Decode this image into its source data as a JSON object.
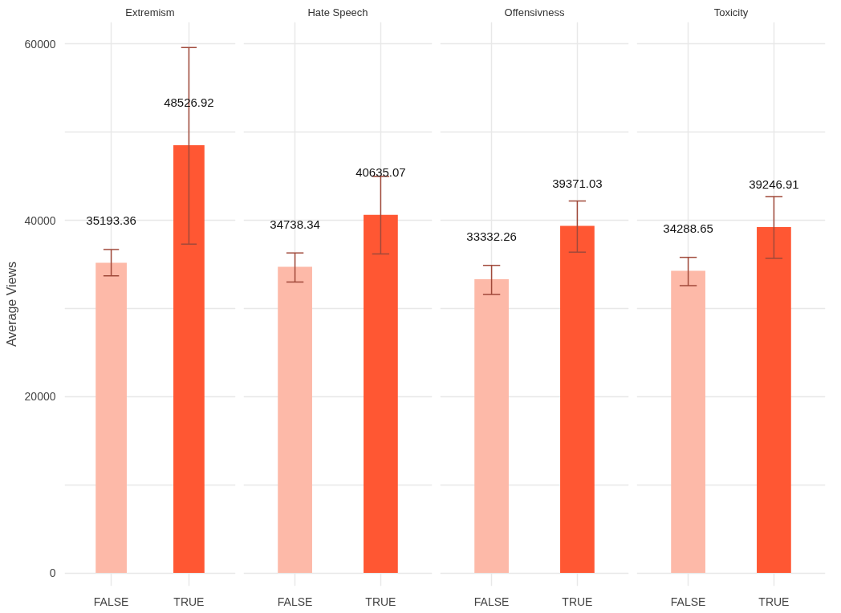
{
  "chart_data": [
    {
      "type": "bar",
      "title": "Extremism",
      "ylabel": "Average Views",
      "categories": [
        "FALSE",
        "TRUE"
      ],
      "values": [
        35193.36,
        48526.92
      ],
      "colors": [
        "#fdb9a8",
        "#ff5733"
      ],
      "errors": [
        [
          33700,
          36700
        ],
        [
          37300,
          59600
        ]
      ],
      "data_labels": true,
      "ylim": [
        -1500,
        62500
      ],
      "yticks": [
        0,
        {
          "value": 10000,
          "label": null
        },
        20000,
        {
          "value": 30000,
          "label": null
        },
        40000,
        {
          "value": 50000,
          "label": null
        },
        60000
      ],
      "grid": true
    },
    {
      "type": "bar",
      "title": "Hate Speech",
      "categories": [
        "FALSE",
        "TRUE"
      ],
      "values": [
        34738.34,
        40635.07
      ],
      "colors": [
        "#fdb9a8",
        "#ff5733"
      ],
      "errors": [
        [
          33000,
          36300
        ],
        [
          36200,
          45000
        ]
      ],
      "data_labels": true,
      "ylim": [
        -1500,
        62500
      ],
      "yticks": [
        0,
        {
          "value": 10000,
          "label": null
        },
        20000,
        {
          "value": 30000,
          "label": null
        },
        40000,
        {
          "value": 50000,
          "label": null
        },
        60000
      ],
      "grid": true,
      "tick_labels": "x"
    },
    {
      "type": "bar",
      "title": "Offensivness",
      "categories": [
        "FALSE",
        "TRUE"
      ],
      "values": [
        33332.26,
        39371.03
      ],
      "colors": [
        "#fdb9a8",
        "#ff5733"
      ],
      "errors": [
        [
          31600,
          34900
        ],
        [
          36400,
          42200
        ]
      ],
      "data_labels": true,
      "ylim": [
        -1500,
        62500
      ],
      "yticks": [
        0,
        {
          "value": 10000,
          "label": null
        },
        20000,
        {
          "value": 30000,
          "label": null
        },
        40000,
        {
          "value": 50000,
          "label": null
        },
        60000
      ],
      "grid": true,
      "tick_labels": "x"
    },
    {
      "type": "bar",
      "title": "Toxicity",
      "categories": [
        "FALSE",
        "TRUE"
      ],
      "values": [
        34288.65,
        39246.91
      ],
      "colors": [
        "#fdb9a8",
        "#ff5733"
      ],
      "errors": [
        [
          32600,
          35800
        ],
        [
          35700,
          42700
        ]
      ],
      "data_labels": true,
      "ylim": [
        -1500,
        62500
      ],
      "yticks": [
        0,
        {
          "value": 10000,
          "label": null
        },
        20000,
        {
          "value": 30000,
          "label": null
        },
        40000,
        {
          "value": 50000,
          "label": null
        },
        60000
      ],
      "grid": true,
      "tick_labels": "x"
    }
  ]
}
